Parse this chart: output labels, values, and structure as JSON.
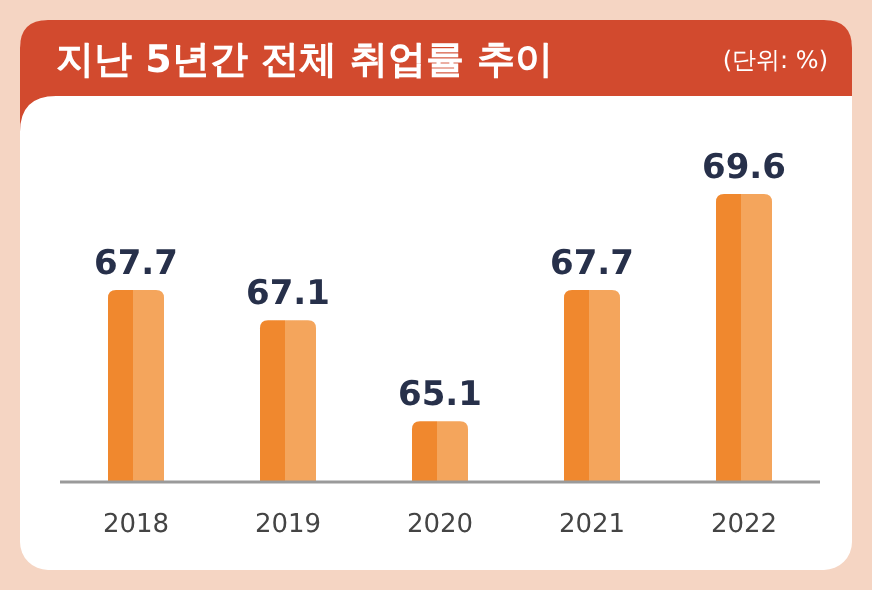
{
  "chart_data": {
    "type": "bar",
    "title": "지난 5년간 전체 취업률 추이",
    "subtitle": "(단위: %)",
    "categories": [
      "2018",
      "2019",
      "2020",
      "2021",
      "2022"
    ],
    "values": [
      67.7,
      67.1,
      65.1,
      67.7,
      69.6
    ],
    "color": "#f0882e",
    "ylim": [
      63.9,
      69.6
    ],
    "data_labels": true
  }
}
